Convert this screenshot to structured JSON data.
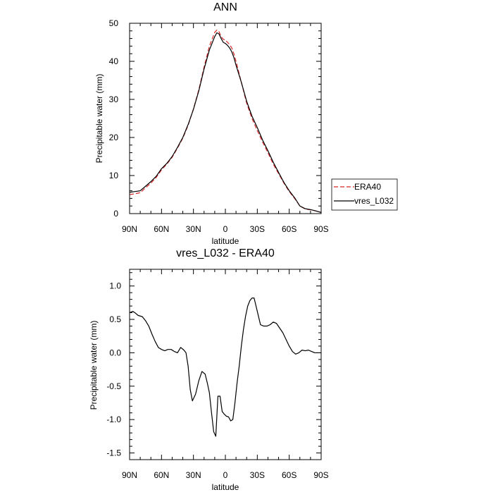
{
  "chart_data": [
    {
      "type": "line",
      "title": "ANN",
      "xlabel": "latitude",
      "ylabel": "Precipitable water (mm)",
      "xlim": [
        90,
        -90
      ],
      "ylim": [
        0,
        50
      ],
      "x_ticks": [
        {
          "value": 90,
          "label": "90N"
        },
        {
          "value": 60,
          "label": "60N"
        },
        {
          "value": 30,
          "label": "30N"
        },
        {
          "value": 0,
          "label": "0"
        },
        {
          "value": -30,
          "label": "30S"
        },
        {
          "value": -60,
          "label": "60S"
        },
        {
          "value": -90,
          "label": "90S"
        }
      ],
      "y_ticks": [
        0,
        10,
        20,
        30,
        40,
        50
      ],
      "legend_position": "right",
      "series": [
        {
          "name": "ERA40",
          "color": "#d62728",
          "dash": "dashed",
          "x": [
            90,
            85,
            80,
            75,
            70,
            65,
            60,
            55,
            50,
            45,
            40,
            35,
            30,
            25,
            20,
            15,
            10,
            8,
            6,
            4,
            2,
            0,
            -2,
            -4,
            -6,
            -8,
            -10,
            -15,
            -20,
            -25,
            -30,
            -35,
            -40,
            -45,
            -50,
            -55,
            -60,
            -65,
            -70,
            -75,
            -80,
            -85,
            -90
          ],
          "y": [
            5.0,
            5.2,
            5.5,
            6.8,
            8.0,
            9.5,
            11.5,
            13.0,
            14.8,
            17.2,
            19.8,
            23.2,
            27.5,
            32.5,
            38.5,
            44.0,
            47.6,
            48.2,
            47.8,
            46.5,
            45.8,
            45.6,
            45.0,
            44.4,
            43.5,
            42.0,
            40.0,
            34.5,
            29.0,
            25.0,
            21.8,
            18.8,
            16.0,
            13.0,
            10.5,
            8.0,
            5.8,
            4.0,
            2.0,
            1.2,
            1.0,
            0.7,
            0.3
          ]
        },
        {
          "name": "vres_L032",
          "color": "#000000",
          "dash": "solid",
          "x": [
            90,
            85,
            80,
            75,
            70,
            65,
            60,
            55,
            50,
            45,
            40,
            35,
            30,
            25,
            20,
            15,
            10,
            8,
            6,
            4,
            2,
            0,
            -2,
            -4,
            -6,
            -8,
            -10,
            -15,
            -20,
            -25,
            -30,
            -35,
            -40,
            -45,
            -50,
            -55,
            -60,
            -65,
            -70,
            -75,
            -80,
            -85,
            -90
          ],
          "y": [
            5.6,
            5.8,
            6.0,
            7.2,
            8.4,
            9.8,
            11.8,
            13.2,
            15.0,
            17.4,
            20.0,
            23.4,
            27.4,
            32.2,
            38.0,
            43.0,
            46.5,
            47.5,
            47.2,
            46.0,
            45.0,
            44.7,
            44.2,
            43.5,
            42.5,
            41.0,
            39.0,
            34.5,
            29.5,
            25.6,
            22.6,
            19.3,
            16.5,
            13.5,
            10.8,
            8.2,
            6.0,
            4.2,
            2.0,
            1.3,
            1.05,
            0.7,
            0.3
          ]
        }
      ]
    },
    {
      "type": "line",
      "title": "vres_L032 - ERA40",
      "xlabel": "latitude",
      "ylabel": "Precipitable water (mm)",
      "xlim": [
        90,
        -90
      ],
      "ylim": [
        -1.6,
        1.25
      ],
      "x_ticks": [
        {
          "value": 90,
          "label": "90N"
        },
        {
          "value": 60,
          "label": "60N"
        },
        {
          "value": 30,
          "label": "30N"
        },
        {
          "value": 0,
          "label": "0"
        },
        {
          "value": -30,
          "label": "30S"
        },
        {
          "value": -60,
          "label": "60S"
        },
        {
          "value": -90,
          "label": "90S"
        }
      ],
      "y_ticks": [
        {
          "value": 1.0,
          "label": "1.0"
        },
        {
          "value": 0.5,
          "label": "0.5"
        },
        {
          "value": 0.0,
          "label": "0.0"
        },
        {
          "value": -0.5,
          "label": "-0.5"
        },
        {
          "value": -1.0,
          "label": "-1.0"
        },
        {
          "value": -1.5,
          "label": "-1.5"
        }
      ],
      "series": [
        {
          "color": "#000000",
          "dash": "solid",
          "x": [
            90,
            87,
            85,
            82,
            78,
            75,
            72,
            69,
            66,
            63,
            60,
            57,
            54,
            51,
            48,
            45,
            42,
            39,
            37,
            35,
            33,
            31,
            28,
            25,
            22,
            19,
            17,
            15,
            13,
            11,
            9,
            7,
            5,
            3,
            1,
            -1,
            -3,
            -5,
            -7,
            -9,
            -11,
            -13,
            -15,
            -17,
            -19,
            -21,
            -23,
            -25,
            -27,
            -30,
            -33,
            -36,
            -39,
            -42,
            -45,
            -48,
            -51,
            -54,
            -57,
            -60,
            -63,
            -66,
            -69,
            -72,
            -75,
            -78,
            -81,
            -84,
            -87,
            -90
          ],
          "y": [
            0.6,
            0.62,
            0.6,
            0.56,
            0.54,
            0.48,
            0.4,
            0.28,
            0.17,
            0.08,
            0.05,
            0.03,
            0.05,
            0.05,
            0.02,
            0.0,
            0.08,
            0.04,
            0.0,
            -0.2,
            -0.55,
            -0.72,
            -0.62,
            -0.42,
            -0.28,
            -0.32,
            -0.45,
            -0.6,
            -0.9,
            -1.18,
            -1.25,
            -0.65,
            -0.65,
            -0.88,
            -0.92,
            -0.95,
            -0.96,
            -1.02,
            -1.0,
            -0.75,
            -0.45,
            -0.2,
            0.1,
            0.35,
            0.55,
            0.7,
            0.78,
            0.82,
            0.82,
            0.62,
            0.42,
            0.4,
            0.4,
            0.42,
            0.46,
            0.44,
            0.37,
            0.3,
            0.2,
            0.1,
            0.02,
            -0.02,
            0.0,
            0.04,
            0.03,
            0.04,
            0.02,
            0.0,
            0.0,
            0.0
          ]
        }
      ]
    }
  ]
}
